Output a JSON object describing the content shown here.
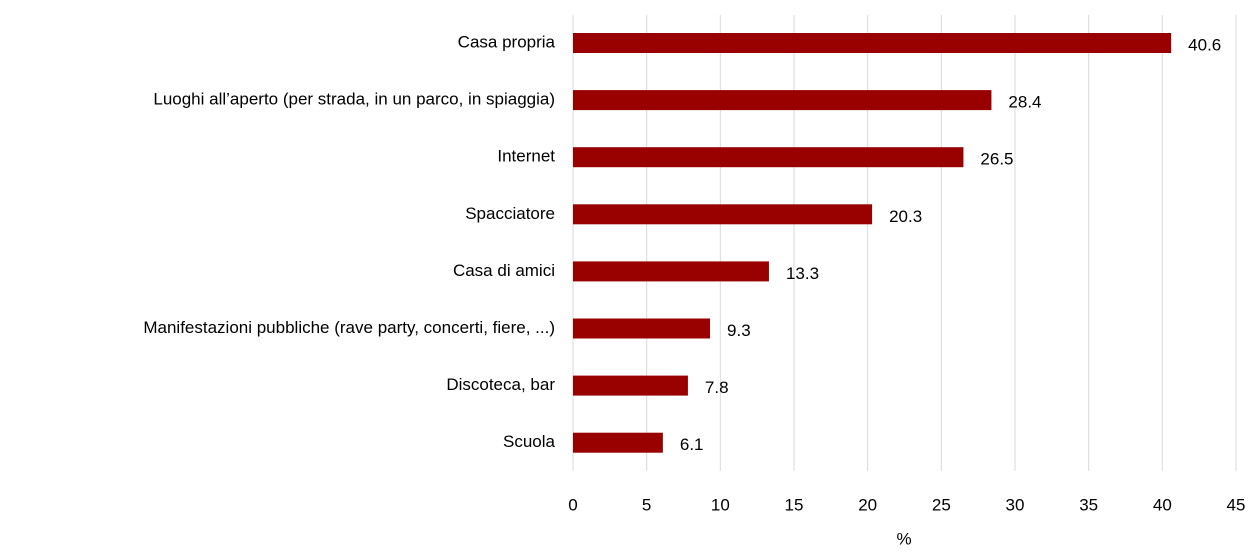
{
  "chart_data": {
    "type": "bar",
    "orientation": "horizontal",
    "categories": [
      "Casa propria",
      "Luoghi all’aperto (per strada, in un parco, in spiaggia)",
      "Internet",
      "Spacciatore",
      "Casa di amici",
      "Manifestazioni pubbliche (rave party, concerti, fiere, ...)",
      "Discoteca, bar",
      "Scuola"
    ],
    "values": [
      40.6,
      28.4,
      26.5,
      20.3,
      13.3,
      9.3,
      7.8,
      6.1
    ],
    "color": "#990000",
    "xlabel": "%",
    "xlim": [
      0,
      45
    ],
    "xticks": [
      0,
      5,
      10,
      15,
      20,
      25,
      30,
      35,
      40,
      45
    ],
    "grid": true
  }
}
